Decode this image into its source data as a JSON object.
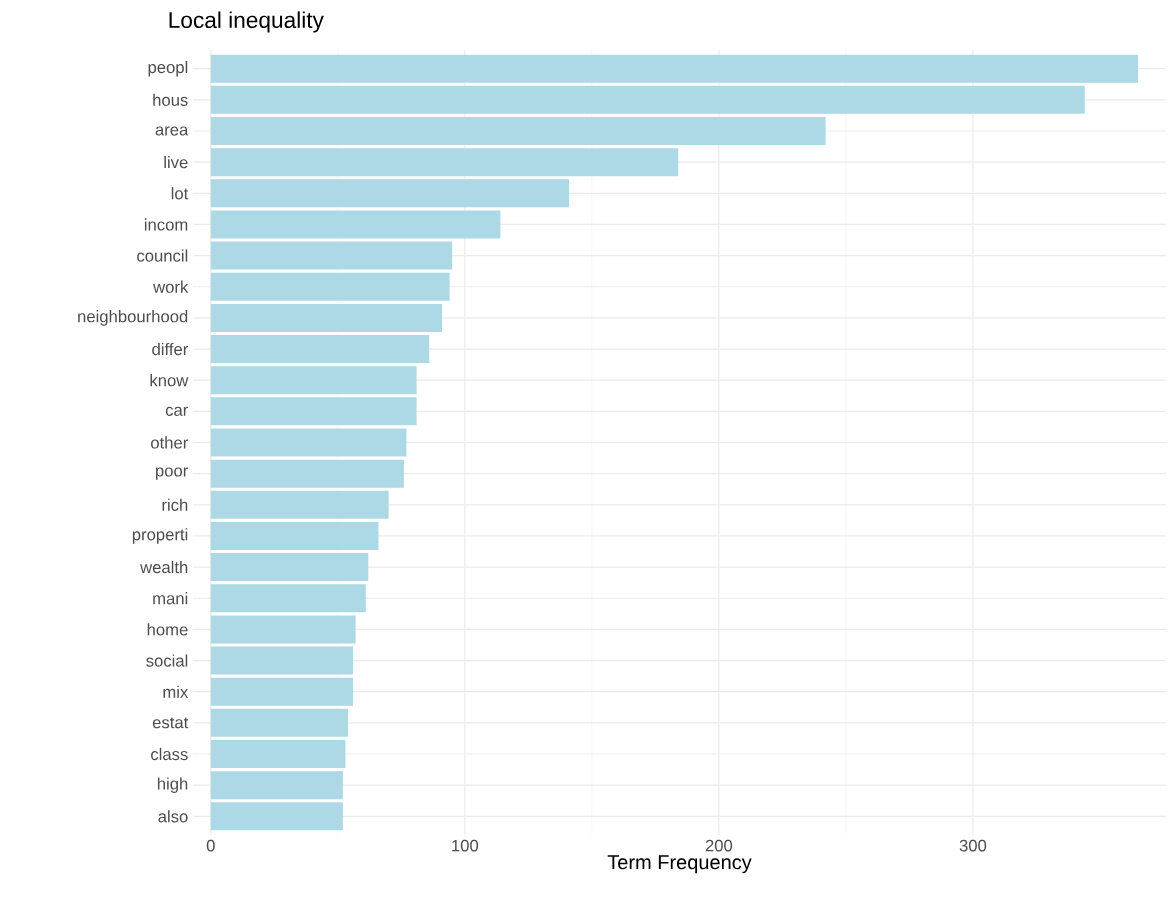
{
  "chart_data": {
    "type": "bar",
    "orientation": "horizontal",
    "title": "Local inequality",
    "xlabel": "Term Frequency",
    "categories": [
      "peopl",
      "hous",
      "area",
      "live",
      "lot",
      "incom",
      "council",
      "work",
      "neighbourhood",
      "differ",
      "know",
      "car",
      "other",
      "poor",
      "rich",
      "properti",
      "wealth",
      "mani",
      "home",
      "social",
      "mix",
      "estat",
      "class",
      "high",
      "also"
    ],
    "values": [
      365,
      344,
      242,
      184,
      141,
      114,
      95,
      94,
      91,
      86,
      81,
      81,
      77,
      76,
      70,
      66,
      62,
      61,
      57,
      56,
      56,
      54,
      53,
      52,
      52
    ],
    "color": "#add8e6",
    "xlim": [
      -7,
      376
    ],
    "xticks": [
      0,
      100,
      200,
      300
    ],
    "grid": true
  }
}
